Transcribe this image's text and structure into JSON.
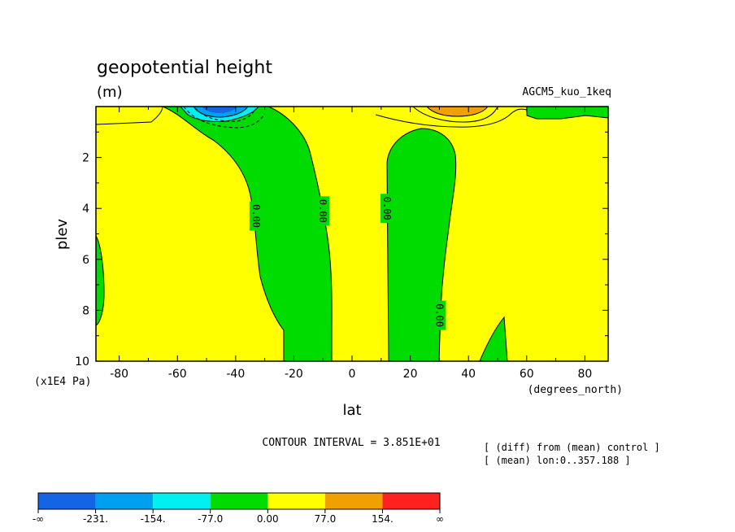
{
  "chart_data": {
    "type": "contour",
    "title": "geopotential height",
    "units": "(m)",
    "model_label": "AGCM5_kuo_1keq",
    "xlabel": "lat",
    "x_unit": "(degrees_north)",
    "ylabel": "plev",
    "y_unit": "(x1E4 Pa)",
    "xlim": [
      -88,
      88
    ],
    "ylim": [
      0,
      10
    ],
    "y_inverted": true,
    "x_ticks": [
      "-80",
      "-60",
      "-40",
      "-20",
      "0",
      "20",
      "40",
      "60",
      "80"
    ],
    "x_tick_values": [
      -80,
      -60,
      -40,
      -20,
      0,
      20,
      40,
      60,
      80
    ],
    "y_ticks": [
      "2",
      "4",
      "6",
      "8",
      "10"
    ],
    "y_tick_values": [
      2,
      4,
      6,
      8,
      10
    ],
    "contour_labels": [
      {
        "text": "0.00",
        "x": -33,
        "y": 4.3
      },
      {
        "text": "0.00",
        "x": -10,
        "y": 4.1
      },
      {
        "text": "0.00",
        "x": 12,
        "y": 4.0
      },
      {
        "text": "0.00",
        "x": 30,
        "y": 8.2
      }
    ],
    "contour_interval_label": "CONTOUR INTERVAL = 3.851E+01",
    "notes": [
      "[ (diff) from (mean) control ]",
      "[ (mean) lon:0..357.188 ]"
    ],
    "colorbar": {
      "labels": [
        "-∞",
        "-231.",
        "-154.",
        "-77.0",
        "0.00",
        "77.0",
        "154.",
        "∞"
      ],
      "colors": [
        "#1464e6",
        "#00a0f0",
        "#00f0f0",
        "#00dc00",
        "#ffff00",
        "#f0a000",
        "#ff2020"
      ]
    }
  }
}
